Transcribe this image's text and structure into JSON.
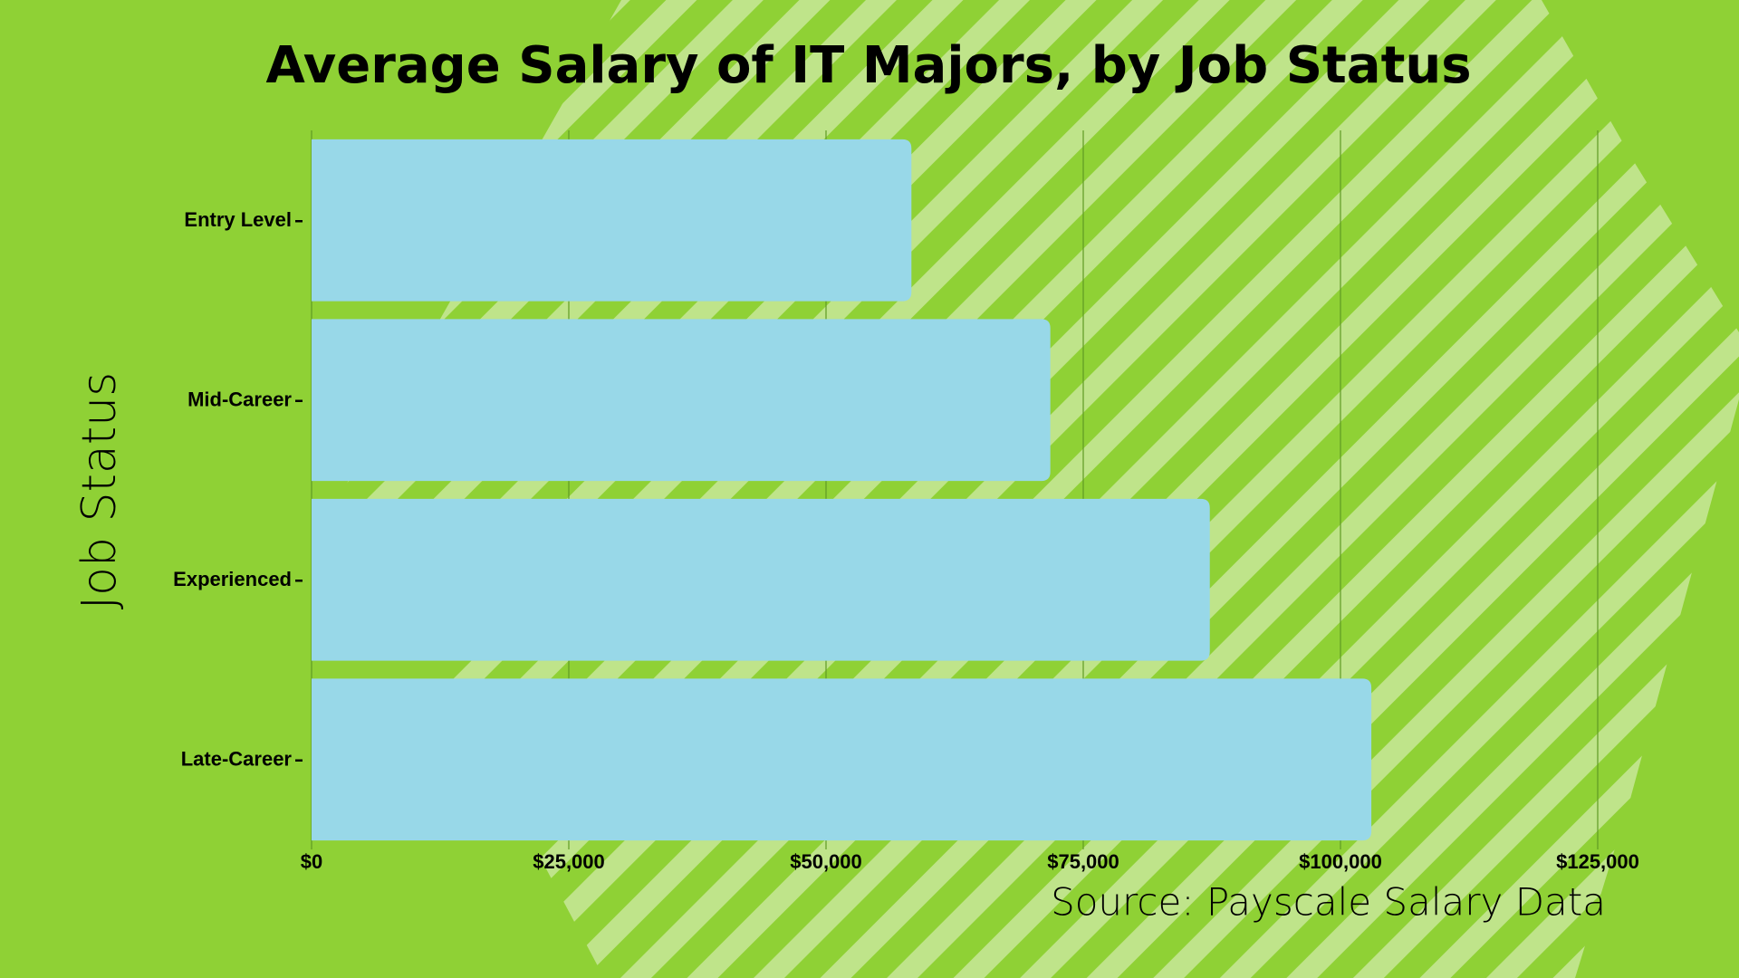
{
  "chart_data": {
    "type": "bar",
    "orientation": "horizontal",
    "title": "Average Salary of IT Majors, by Job Status",
    "y_label": "Job Status",
    "source": "Source: Payscale Salary Data",
    "categories": [
      "Entry Level",
      "Mid-Career",
      "Experienced",
      "Late-Career"
    ],
    "values": [
      58300,
      71800,
      87300,
      103000
    ],
    "color": "#98d8e8",
    "xlim": [
      0,
      125000
    ],
    "xticks": [
      {
        "value": 0,
        "label": "$0"
      },
      {
        "value": 25000,
        "label": "$25,000"
      },
      {
        "value": 50000,
        "label": "$50,000"
      },
      {
        "value": 75000,
        "label": "$75,000"
      },
      {
        "value": 100000,
        "label": "$100,000"
      },
      {
        "value": 125000,
        "label": "$125,000"
      }
    ],
    "grid": true
  }
}
